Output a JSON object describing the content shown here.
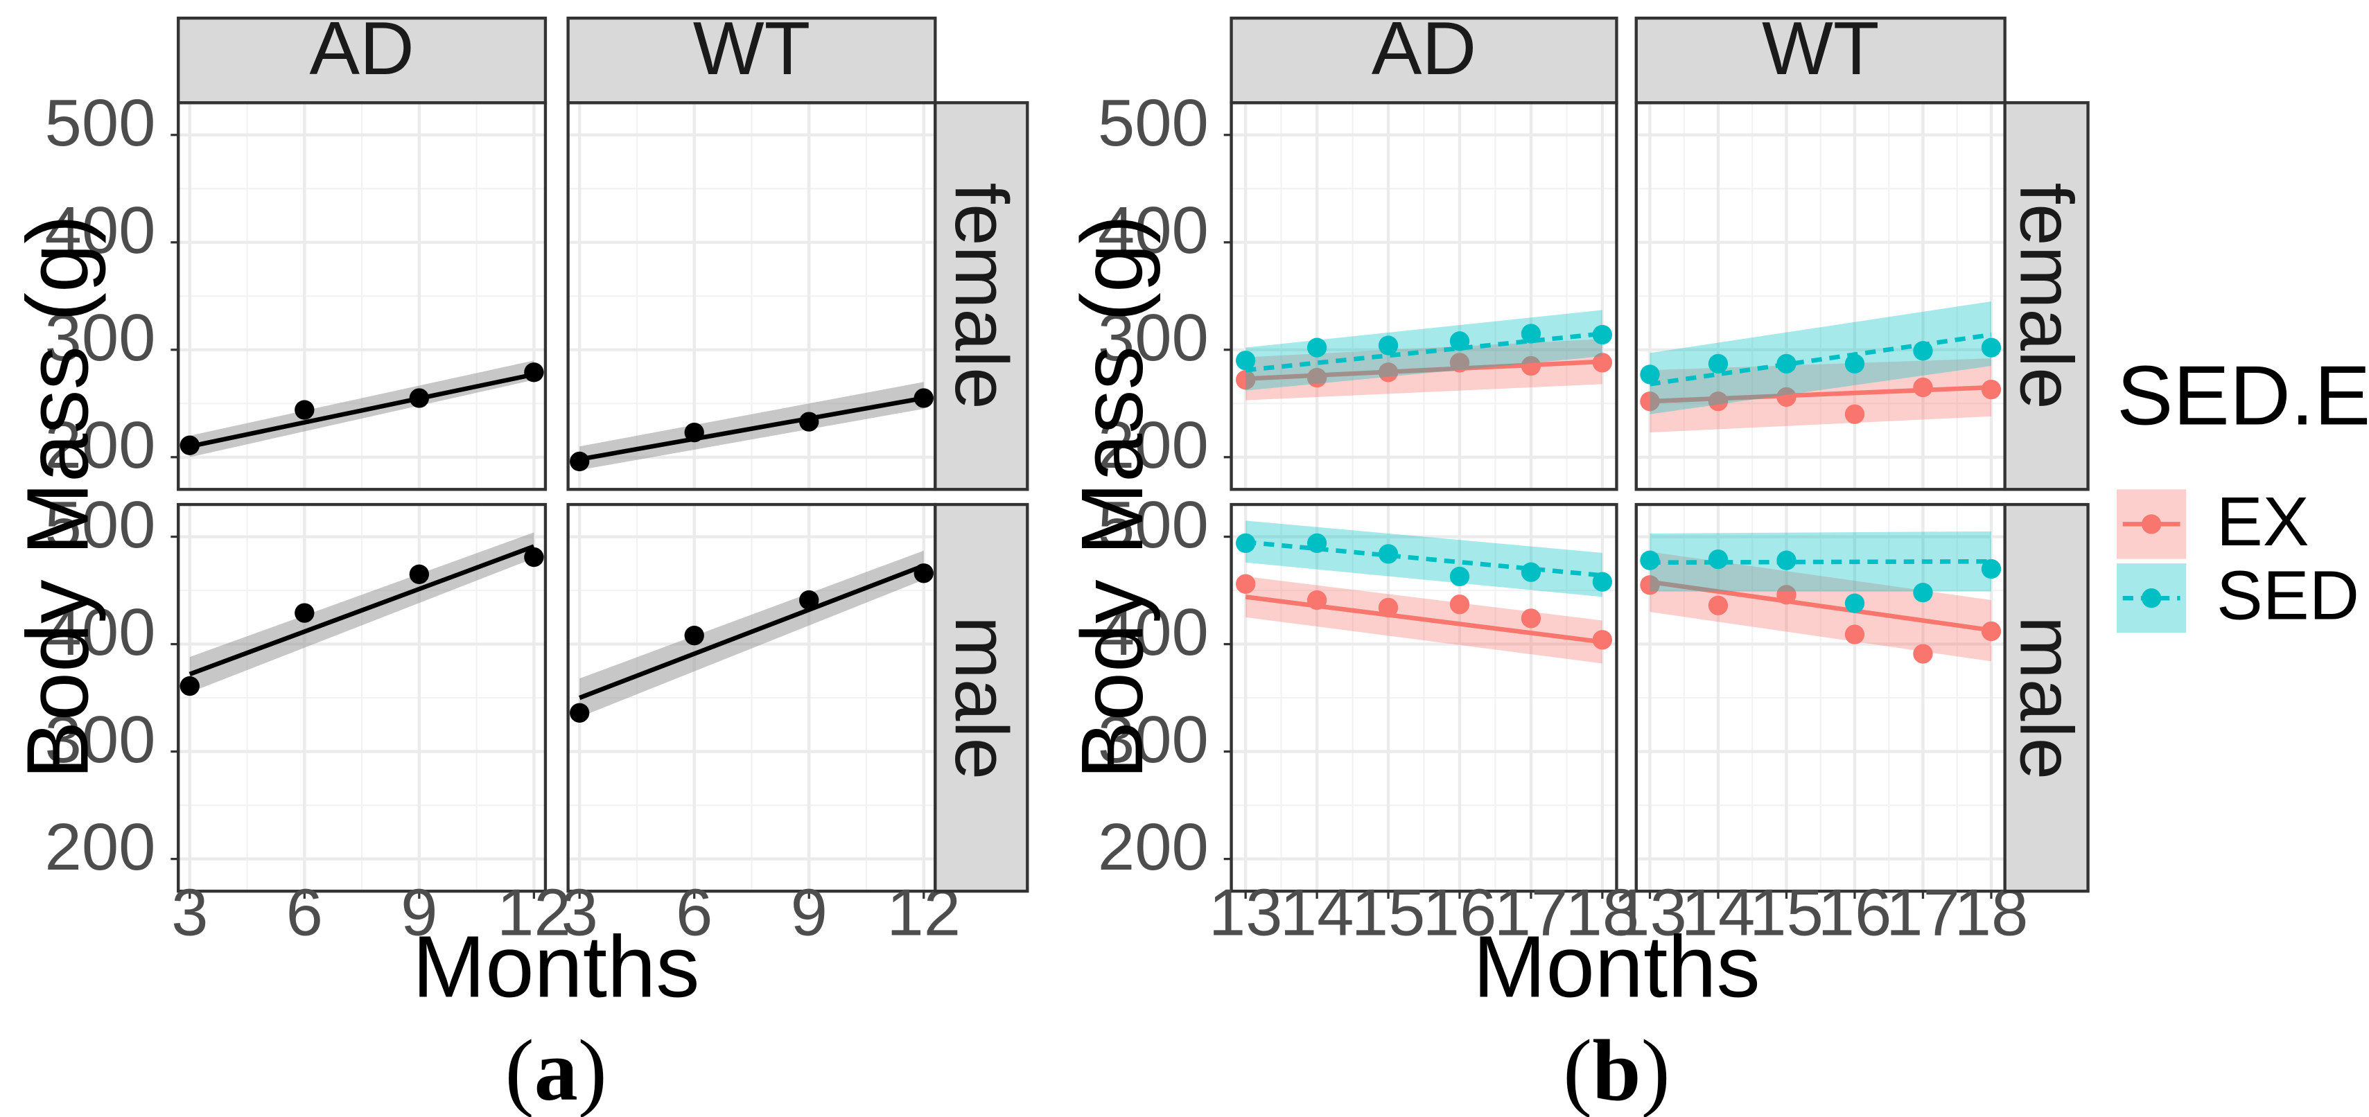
{
  "chart_data": [
    {
      "type": "scatter",
      "panel_id": "a",
      "caption_open": "(",
      "caption_letter": "a",
      "caption_close": ")",
      "xlabel": "Months",
      "ylabel": "Body Mass (g)",
      "xlim": [
        2.7,
        12.3
      ],
      "ylim": [
        170,
        530
      ],
      "xticks": [
        3,
        6,
        9,
        12
      ],
      "xtick_labels": [
        "3",
        "6",
        "9",
        "12"
      ],
      "yticks": [
        200,
        300,
        400,
        500
      ],
      "ytick_labels": [
        "200",
        "300",
        "400",
        "500"
      ],
      "col_facets": [
        "AD",
        "WT"
      ],
      "row_facets": [
        "female",
        "male"
      ],
      "panels": [
        {
          "col": "AD",
          "row": "female",
          "series": [
            {
              "name": "all",
              "color": "#000000",
              "x": [
                3,
                6,
                9,
                12
              ],
              "y": [
                211,
                244,
                255,
                279
              ],
              "fit": [
                210,
                277
              ],
              "band": [
                [
                  200,
                  220
                ],
                [
                  272,
                  290
                ]
              ]
            }
          ]
        },
        {
          "col": "WT",
          "row": "female",
          "series": [
            {
              "name": "all",
              "color": "#000000",
              "x": [
                3,
                6,
                9,
                12
              ],
              "y": [
                196,
                223,
                233,
                255
              ],
              "fit": [
                198,
                255
              ],
              "band": [
                [
                  188,
                  210
                ],
                [
                  245,
                  270
                ]
              ]
            }
          ]
        },
        {
          "col": "AD",
          "row": "male",
          "series": [
            {
              "name": "all",
              "color": "#000000",
              "x": [
                3,
                6,
                9,
                12
              ],
              "y": [
                361,
                429,
                465,
                481
              ],
              "fit": [
                372,
                491
              ],
              "band": [
                [
                  355,
                  388
                ],
                [
                  480,
                  504
                ]
              ]
            }
          ]
        },
        {
          "col": "WT",
          "row": "male",
          "series": [
            {
              "name": "all",
              "color": "#000000",
              "x": [
                3,
                6,
                9,
                12
              ],
              "y": [
                336,
                408,
                441,
                466
              ],
              "fit": [
                350,
                473
              ],
              "band": [
                [
                  332,
                  368
                ],
                [
                  460,
                  487
                ]
              ]
            }
          ]
        }
      ]
    },
    {
      "type": "scatter",
      "panel_id": "b",
      "caption_open": "(",
      "caption_letter": "b",
      "caption_close": ")",
      "xlabel": "Months",
      "ylabel": "Body Mass (g)",
      "xlim": [
        12.8,
        18.2
      ],
      "ylim": [
        170,
        530
      ],
      "xticks": [
        13,
        14,
        15,
        16,
        17,
        18
      ],
      "xtick_labels": [
        "13",
        "14",
        "15",
        "16",
        "17",
        "18"
      ],
      "yticks": [
        200,
        300,
        400,
        500
      ],
      "ytick_labels": [
        "200",
        "300",
        "400",
        "500"
      ],
      "col_facets": [
        "AD",
        "WT"
      ],
      "row_facets": [
        "female",
        "male"
      ],
      "legend": {
        "title": "SED.EX",
        "placement": "right",
        "entries": [
          {
            "label": "EX",
            "color": "#F8766D",
            "line": "solid"
          },
          {
            "label": "SED",
            "color": "#00BFC4",
            "line": "dashed"
          }
        ]
      },
      "panels": [
        {
          "col": "AD",
          "row": "female",
          "series": [
            {
              "name": "EX",
              "color": "#F8766D",
              "x": [
                13,
                14,
                15,
                16,
                17,
                18
              ],
              "y": [
                272,
                274,
                279,
                288,
                285,
                288
              ],
              "fit": [
                273,
                289
              ],
              "band": [
                [
                  253,
                  293
                ],
                [
                  268,
                  310
                ]
              ]
            },
            {
              "name": "SED",
              "color": "#00BFC4",
              "x": [
                13,
                14,
                15,
                16,
                17,
                18
              ],
              "y": [
                290,
                302,
                304,
                308,
                315,
                314
              ],
              "fit": [
                281,
                315
              ],
              "band": [
                [
                  262,
                  302
                ],
                [
                  294,
                  337
                ]
              ]
            }
          ]
        },
        {
          "col": "WT",
          "row": "female",
          "series": [
            {
              "name": "EX",
              "color": "#F8766D",
              "x": [
                13,
                14,
                15,
                16,
                17,
                18
              ],
              "y": [
                252,
                252,
                256,
                240,
                265,
                263
              ],
              "fit": [
                252,
                265
              ],
              "band": [
                [
                  223,
                  281
                ],
                [
                  238,
                  292
                ]
              ]
            },
            {
              "name": "SED",
              "color": "#00BFC4",
              "x": [
                13,
                14,
                15,
                16,
                17,
                18
              ],
              "y": [
                277,
                287,
                287,
                287,
                299,
                302
              ],
              "fit": [
                268,
                314
              ],
              "band": [
                [
                  240,
                  297
                ],
                [
                  285,
                  345
                ]
              ]
            }
          ]
        },
        {
          "col": "AD",
          "row": "male",
          "series": [
            {
              "name": "EX",
              "color": "#F8766D",
              "x": [
                13,
                14,
                15,
                16,
                17,
                18
              ],
              "y": [
                456,
                441,
                434,
                437,
                424,
                404
              ],
              "fit": [
                444,
                402
              ],
              "band": [
                [
                  425,
                  463
                ],
                [
                  382,
                  422
                ]
              ]
            },
            {
              "name": "SED",
              "color": "#00BFC4",
              "x": [
                13,
                14,
                15,
                16,
                17,
                18
              ],
              "y": [
                494,
                494,
                484,
                463,
                467,
                458
              ],
              "fit": [
                495,
                464
              ],
              "band": [
                [
                  476,
                  515
                ],
                [
                  444,
                  485
                ]
              ]
            }
          ]
        },
        {
          "col": "WT",
          "row": "male",
          "series": [
            {
              "name": "EX",
              "color": "#F8766D",
              "x": [
                13,
                14,
                15,
                16,
                17,
                18
              ],
              "y": [
                455,
                436,
                446,
                409,
                391,
                412
              ],
              "fit": [
                458,
                413
              ],
              "band": [
                [
                  430,
                  486
                ],
                [
                  384,
                  441
                ]
              ]
            },
            {
              "name": "SED",
              "color": "#00BFC4",
              "x": [
                13,
                14,
                15,
                16,
                17,
                18
              ],
              "y": [
                478,
                479,
                478,
                438,
                448,
                470
              ],
              "fit": [
                476,
                477
              ],
              "band": [
                [
                  449,
                  503
                ],
                [
                  449,
                  505
                ]
              ]
            }
          ]
        }
      ]
    }
  ]
}
